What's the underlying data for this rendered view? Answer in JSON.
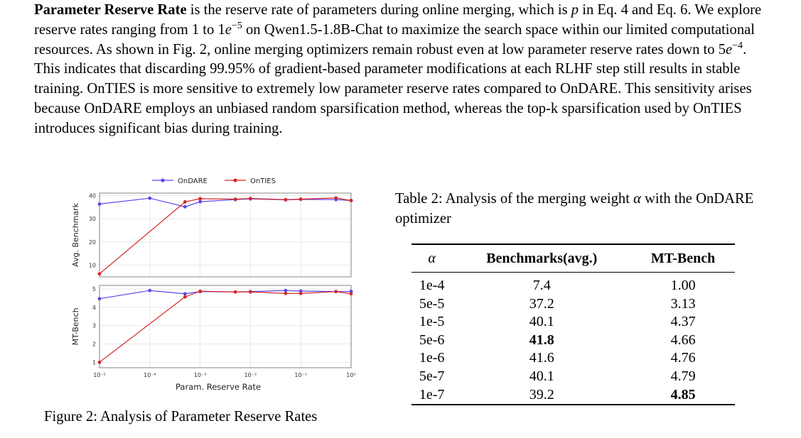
{
  "paragraph": {
    "lead_bold": "Parameter Reserve Rate",
    "s1a": " is the reserve rate of parameters during online merging, which is ",
    "s1_var": "p",
    "s1b": " in Eq. 4 and Eq. 6. We explore reserve rates ranging from 1 to 1",
    "s1_e": "e",
    "s1_exp": "−5",
    "s1c": " on Qwen1.5-1.8B-Chat to maximize the search space within our limited computational resources. As shown in Fig. 2, online merging optimizers remain robust even at low parameter reserve rates down to 5",
    "s1_e2": "e",
    "s1_exp2": "−4",
    "s1d": ". This indicates that discarding 99.95% of gradient-based parameter modifications at each RLHF step still results in stable training. OnTIES is more sensitive to extremely low parameter reserve rates compared to OnDARE. This sensitivity arises because OnDARE employs an unbiased random sparsification method, whereas the top-k sparsification used by OnTIES introduces significant bias during training."
  },
  "figure_caption": "Figure 2: Analysis of Parameter Reserve Rates",
  "chart_data": {
    "type": "line",
    "legend": [
      "OnDARE",
      "OnTIES"
    ],
    "legend_position": "top",
    "colors": {
      "OnDARE": "#5c45f0",
      "OnTIES": "#d62728"
    },
    "xlabel": "Param. Reserve Rate",
    "xscale": "log",
    "xticks": [
      "10⁻⁵",
      "10⁻⁴",
      "10⁻³",
      "10⁻²",
      "10⁻¹",
      "10⁰"
    ],
    "x": [
      1e-05,
      0.0001,
      0.0005,
      0.001,
      0.005,
      0.01,
      0.05,
      0.1,
      0.5,
      1
    ],
    "grid": true,
    "panels": [
      {
        "ylabel": "Avg. Benchmark",
        "ylim": [
          5,
          41
        ],
        "yticks": [
          10,
          20,
          30,
          40
        ],
        "series": [
          {
            "name": "OnDARE",
            "values": [
              36.3,
              38.8,
              35.1,
              37.3,
              38.2,
              38.5,
              38.1,
              38.3,
              38.2,
              37.8
            ]
          },
          {
            "name": "OnTIES",
            "values": [
              6.3,
              null,
              37.2,
              38.6,
              38.4,
              38.7,
              38.2,
              38.4,
              38.9,
              37.8
            ]
          }
        ]
      },
      {
        "ylabel": "MT-Bench",
        "ylim": [
          0.7,
          5.2
        ],
        "yticks": [
          1,
          2,
          3,
          4,
          5
        ],
        "series": [
          {
            "name": "OnDARE",
            "values": [
              4.47,
              4.92,
              4.74,
              4.86,
              4.84,
              4.86,
              4.92,
              4.89,
              4.86,
              4.87
            ]
          },
          {
            "name": "OnTIES",
            "values": [
              1.0,
              null,
              4.57,
              4.88,
              4.84,
              4.84,
              4.76,
              4.76,
              4.86,
              4.74
            ]
          }
        ]
      }
    ]
  },
  "table": {
    "caption_a": "Table 2: Analysis of the merging weight ",
    "caption_alpha": "α",
    "caption_b": " with the OnDARE optimizer",
    "headers": [
      "α",
      "Benchmarks(avg.)",
      "MT-Bench"
    ],
    "rows": [
      [
        "1e-4",
        "7.4",
        "1.00"
      ],
      [
        "5e-5",
        "37.2",
        "3.13"
      ],
      [
        "1e-5",
        "40.1",
        "4.37"
      ],
      [
        "5e-6",
        "41.8",
        "4.66"
      ],
      [
        "1e-6",
        "41.6",
        "4.76"
      ],
      [
        "5e-7",
        "40.1",
        "4.79"
      ],
      [
        "1e-7",
        "39.2",
        "4.85"
      ]
    ],
    "bold_cells": [
      [
        3,
        1
      ],
      [
        6,
        2
      ]
    ]
  }
}
